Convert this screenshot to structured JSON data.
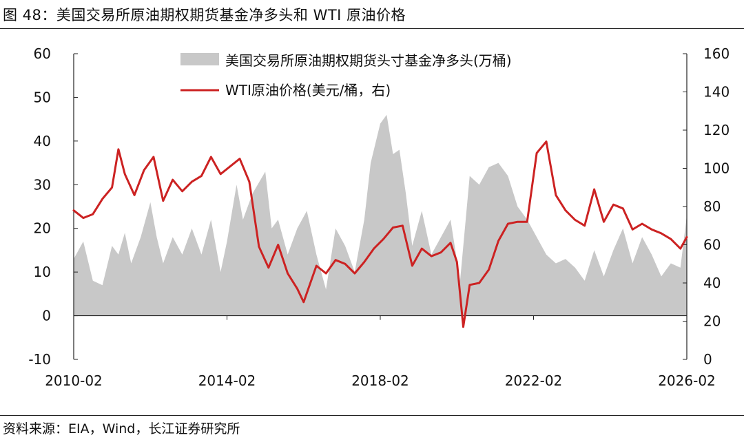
{
  "figure_title": "图 48：美国交易所原油期权期货基金净多头和 WTI 原油价格",
  "source_note": "资料来源：EIA，Wind，长江证券研究所",
  "chart_data": {
    "type": "area",
    "x_ticks": [
      "2010-02",
      "2014-02",
      "2018-02",
      "2022-02",
      "2026-02"
    ],
    "x_range": [
      "2010-02",
      "2026-02"
    ],
    "y_left": {
      "ticks": [
        "60",
        "50",
        "40",
        "30",
        "20",
        "10",
        "0",
        "-10"
      ],
      "range": [
        -10,
        60
      ]
    },
    "y_right": {
      "ticks": [
        "160",
        "140",
        "120",
        "100",
        "80",
        "60",
        "40",
        "20",
        "0"
      ],
      "range": [
        0,
        160
      ]
    },
    "grid": false,
    "legend_position": "top-center",
    "series": [
      {
        "name": "美国交易所原油期权期货头寸基金净多头(万桶)",
        "kind": "area",
        "axis": "left",
        "color": "#c8c8c8",
        "points": [
          [
            "2010-02",
            13
          ],
          [
            "2010-05",
            17
          ],
          [
            "2010-08",
            8
          ],
          [
            "2010-11",
            7
          ],
          [
            "2011-02",
            16
          ],
          [
            "2011-04",
            14
          ],
          [
            "2011-06",
            19
          ],
          [
            "2011-08",
            12
          ],
          [
            "2011-11",
            18
          ],
          [
            "2012-02",
            26
          ],
          [
            "2012-04",
            18
          ],
          [
            "2012-06",
            12
          ],
          [
            "2012-09",
            18
          ],
          [
            "2012-12",
            14
          ],
          [
            "2013-03",
            20
          ],
          [
            "2013-06",
            14
          ],
          [
            "2013-09",
            22
          ],
          [
            "2013-12",
            10
          ],
          [
            "2014-02",
            17
          ],
          [
            "2014-05",
            30
          ],
          [
            "2014-07",
            22
          ],
          [
            "2014-10",
            28
          ],
          [
            "2015-02",
            33
          ],
          [
            "2015-04",
            20
          ],
          [
            "2015-06",
            22
          ],
          [
            "2015-09",
            14
          ],
          [
            "2015-12",
            20
          ],
          [
            "2016-03",
            24
          ],
          [
            "2016-06",
            14
          ],
          [
            "2016-09",
            6
          ],
          [
            "2016-12",
            20
          ],
          [
            "2017-03",
            16
          ],
          [
            "2017-06",
            10
          ],
          [
            "2017-09",
            22
          ],
          [
            "2017-11",
            35
          ],
          [
            "2018-02",
            44
          ],
          [
            "2018-04",
            46
          ],
          [
            "2018-06",
            37
          ],
          [
            "2018-08",
            38
          ],
          [
            "2018-10",
            28
          ],
          [
            "2018-12",
            16
          ],
          [
            "2019-03",
            24
          ],
          [
            "2019-06",
            14
          ],
          [
            "2019-09",
            18
          ],
          [
            "2019-12",
            22
          ],
          [
            "2020-03",
            8
          ],
          [
            "2020-06",
            32
          ],
          [
            "2020-09",
            30
          ],
          [
            "2020-12",
            34
          ],
          [
            "2021-03",
            35
          ],
          [
            "2021-06",
            32
          ],
          [
            "2021-09",
            25
          ],
          [
            "2021-12",
            22
          ],
          [
            "2022-03",
            18
          ],
          [
            "2022-06",
            14
          ],
          [
            "2022-09",
            12
          ],
          [
            "2022-12",
            13
          ],
          [
            "2023-03",
            11
          ],
          [
            "2023-06",
            8
          ],
          [
            "2023-09",
            15
          ],
          [
            "2023-12",
            9
          ],
          [
            "2024-03",
            15
          ],
          [
            "2024-06",
            20
          ],
          [
            "2024-09",
            12
          ],
          [
            "2024-12",
            18
          ],
          [
            "2025-03",
            14
          ],
          [
            "2025-06",
            9
          ],
          [
            "2025-09",
            12
          ],
          [
            "2025-12",
            11
          ],
          [
            "2026-02",
            23
          ]
        ]
      },
      {
        "name": "WTI原油价格(美元/桶，右)",
        "kind": "line",
        "axis": "right",
        "color": "#cc2222",
        "points": [
          [
            "2010-02",
            78
          ],
          [
            "2010-05",
            74
          ],
          [
            "2010-08",
            76
          ],
          [
            "2010-11",
            84
          ],
          [
            "2011-02",
            90
          ],
          [
            "2011-04",
            110
          ],
          [
            "2011-06",
            97
          ],
          [
            "2011-09",
            86
          ],
          [
            "2011-12",
            99
          ],
          [
            "2012-03",
            106
          ],
          [
            "2012-06",
            83
          ],
          [
            "2012-09",
            94
          ],
          [
            "2012-12",
            88
          ],
          [
            "2013-03",
            93
          ],
          [
            "2013-06",
            96
          ],
          [
            "2013-09",
            106
          ],
          [
            "2013-12",
            97
          ],
          [
            "2014-03",
            101
          ],
          [
            "2014-06",
            105
          ],
          [
            "2014-09",
            93
          ],
          [
            "2014-12",
            59
          ],
          [
            "2015-03",
            48
          ],
          [
            "2015-06",
            60
          ],
          [
            "2015-09",
            45
          ],
          [
            "2015-12",
            37
          ],
          [
            "2016-02",
            30
          ],
          [
            "2016-06",
            49
          ],
          [
            "2016-09",
            45
          ],
          [
            "2016-12",
            52
          ],
          [
            "2017-03",
            50
          ],
          [
            "2017-06",
            45
          ],
          [
            "2017-09",
            51
          ],
          [
            "2017-12",
            58
          ],
          [
            "2018-03",
            63
          ],
          [
            "2018-06",
            69
          ],
          [
            "2018-09",
            70
          ],
          [
            "2018-12",
            49
          ],
          [
            "2019-03",
            58
          ],
          [
            "2019-06",
            54
          ],
          [
            "2019-09",
            56
          ],
          [
            "2019-12",
            61
          ],
          [
            "2020-02",
            51
          ],
          [
            "2020-04",
            17
          ],
          [
            "2020-06",
            39
          ],
          [
            "2020-09",
            40
          ],
          [
            "2020-12",
            47
          ],
          [
            "2021-03",
            62
          ],
          [
            "2021-06",
            71
          ],
          [
            "2021-09",
            72
          ],
          [
            "2021-12",
            72
          ],
          [
            "2022-03",
            108
          ],
          [
            "2022-06",
            114
          ],
          [
            "2022-09",
            86
          ],
          [
            "2022-12",
            78
          ],
          [
            "2023-03",
            73
          ],
          [
            "2023-06",
            70
          ],
          [
            "2023-09",
            89
          ],
          [
            "2023-12",
            72
          ],
          [
            "2024-03",
            81
          ],
          [
            "2024-06",
            79
          ],
          [
            "2024-09",
            68
          ],
          [
            "2024-12",
            71
          ],
          [
            "2025-03",
            68
          ],
          [
            "2025-06",
            66
          ],
          [
            "2025-09",
            63
          ],
          [
            "2025-12",
            58
          ],
          [
            "2026-02",
            64
          ]
        ]
      }
    ]
  }
}
